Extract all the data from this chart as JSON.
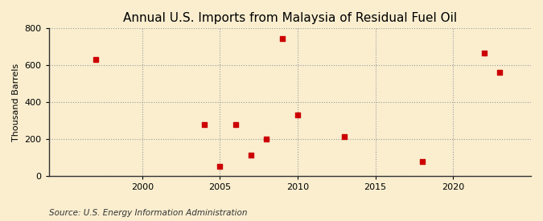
{
  "title": "Annual U.S. Imports from Malaysia of Residual Fuel Oil",
  "ylabel": "Thousand Barrels",
  "source": "Source: U.S. Energy Information Administration",
  "years": [
    1997,
    2004,
    2005,
    2006,
    2007,
    2008,
    2009,
    2010,
    2013,
    2018,
    2022,
    2023
  ],
  "values": [
    630,
    280,
    50,
    280,
    115,
    200,
    745,
    330,
    215,
    80,
    665,
    560
  ],
  "xlim": [
    1994,
    2025
  ],
  "ylim": [
    0,
    800
  ],
  "yticks": [
    0,
    200,
    400,
    600,
    800
  ],
  "xticks": [
    2000,
    2005,
    2010,
    2015,
    2020
  ],
  "marker_color": "#cc0000",
  "marker": "s",
  "marker_size": 4,
  "bg_color": "#faeecf",
  "grid_color": "#999999",
  "title_fontsize": 11,
  "label_fontsize": 8,
  "tick_fontsize": 8,
  "source_fontsize": 7.5
}
